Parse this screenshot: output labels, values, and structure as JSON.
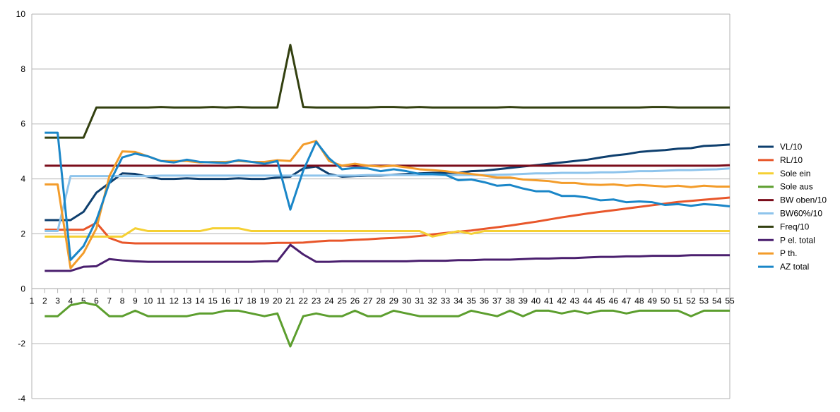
{
  "chart_data": {
    "type": "line",
    "title": "",
    "xlabel": "",
    "ylabel": "",
    "ylim": [
      -4,
      10
    ],
    "yticks": [
      -4,
      -2,
      0,
      2,
      4,
      6,
      8,
      10
    ],
    "categories": [
      1,
      2,
      3,
      4,
      5,
      6,
      7,
      8,
      9,
      10,
      11,
      12,
      13,
      14,
      15,
      16,
      17,
      18,
      19,
      20,
      21,
      22,
      23,
      24,
      25,
      26,
      27,
      28,
      29,
      30,
      31,
      32,
      33,
      34,
      35,
      36,
      37,
      38,
      39,
      40,
      41,
      42,
      43,
      44,
      45,
      46,
      47,
      48,
      49,
      50,
      51,
      52,
      53,
      54,
      55
    ],
    "grid": "horizontal",
    "legend": "right",
    "series": [
      {
        "name": "VL/10",
        "color": "#0e3f6e",
        "values": [
          null,
          2.5,
          2.5,
          2.5,
          2.8,
          3.5,
          3.85,
          4.2,
          4.18,
          4.08,
          4.0,
          4.0,
          4.02,
          4.0,
          4.0,
          4.0,
          4.02,
          4.0,
          4.0,
          4.05,
          4.08,
          4.38,
          4.45,
          4.18,
          4.08,
          4.1,
          4.12,
          4.12,
          4.15,
          4.18,
          4.2,
          4.22,
          4.22,
          4.22,
          4.28,
          4.3,
          4.35,
          4.4,
          4.45,
          4.5,
          4.55,
          4.6,
          4.65,
          4.7,
          4.78,
          4.85,
          4.9,
          4.98,
          5.02,
          5.05,
          5.1,
          5.12,
          5.2,
          5.22,
          5.25
        ]
      },
      {
        "name": "RL/10",
        "color": "#e8562a",
        "values": [
          null,
          2.15,
          2.15,
          2.15,
          2.15,
          2.4,
          1.85,
          1.68,
          1.65,
          1.65,
          1.65,
          1.65,
          1.65,
          1.65,
          1.65,
          1.65,
          1.65,
          1.65,
          1.65,
          1.67,
          1.67,
          1.68,
          1.72,
          1.75,
          1.75,
          1.78,
          1.8,
          1.83,
          1.85,
          1.88,
          1.92,
          1.98,
          2.03,
          2.08,
          2.12,
          2.18,
          2.24,
          2.3,
          2.37,
          2.44,
          2.52,
          2.6,
          2.67,
          2.74,
          2.8,
          2.86,
          2.92,
          2.98,
          3.04,
          3.1,
          3.16,
          3.2,
          3.24,
          3.28,
          3.32
        ]
      },
      {
        "name": "Sole ein",
        "color": "#f5d033",
        "values": [
          null,
          1.9,
          1.9,
          1.9,
          1.9,
          1.9,
          1.9,
          1.9,
          2.2,
          2.1,
          2.1,
          2.1,
          2.1,
          2.1,
          2.2,
          2.2,
          2.2,
          2.1,
          2.1,
          2.1,
          2.1,
          2.1,
          2.1,
          2.1,
          2.1,
          2.1,
          2.1,
          2.1,
          2.1,
          2.1,
          2.1,
          1.9,
          2.0,
          2.1,
          2.0,
          2.1,
          2.1,
          2.1,
          2.1,
          2.1,
          2.1,
          2.1,
          2.1,
          2.1,
          2.1,
          2.1,
          2.1,
          2.1,
          2.1,
          2.1,
          2.1,
          2.1,
          2.1,
          2.1,
          2.1
        ]
      },
      {
        "name": "Sole aus",
        "color": "#5c9e2e",
        "values": [
          null,
          -1.0,
          -1.0,
          -0.6,
          -0.5,
          -0.6,
          -1.0,
          -1.0,
          -0.8,
          -1.0,
          -1.0,
          -1.0,
          -1.0,
          -0.9,
          -0.9,
          -0.8,
          -0.8,
          -0.9,
          -1.0,
          -0.9,
          -2.1,
          -1.0,
          -0.9,
          -1.0,
          -1.0,
          -0.8,
          -1.0,
          -1.0,
          -0.8,
          -0.9,
          -1.0,
          -1.0,
          -1.0,
          -1.0,
          -0.8,
          -0.9,
          -1.0,
          -0.8,
          -1.0,
          -0.8,
          -0.8,
          -0.9,
          -0.8,
          -0.9,
          -0.8,
          -0.8,
          -0.9,
          -0.8,
          -0.8,
          -0.8,
          -0.8,
          -1.0,
          -0.8,
          -0.8,
          -0.8
        ]
      },
      {
        "name": "BW oben/10",
        "color": "#7a0c1a",
        "values": [
          null,
          4.48,
          4.48,
          4.48,
          4.48,
          4.48,
          4.48,
          4.48,
          4.48,
          4.48,
          4.48,
          4.48,
          4.48,
          4.48,
          4.48,
          4.48,
          4.48,
          4.48,
          4.48,
          4.48,
          4.48,
          4.48,
          4.48,
          4.48,
          4.48,
          4.48,
          4.48,
          4.48,
          4.48,
          4.48,
          4.48,
          4.48,
          4.48,
          4.48,
          4.48,
          4.48,
          4.48,
          4.48,
          4.48,
          4.48,
          4.48,
          4.48,
          4.48,
          4.48,
          4.48,
          4.48,
          4.48,
          4.48,
          4.48,
          4.48,
          4.48,
          4.48,
          4.48,
          4.48,
          4.5
        ]
      },
      {
        "name": "BW60%/10",
        "color": "#8ec4ec",
        "values": [
          null,
          2.1,
          2.1,
          4.1,
          4.1,
          4.1,
          4.1,
          4.1,
          4.1,
          4.1,
          4.12,
          4.12,
          4.12,
          4.12,
          4.12,
          4.12,
          4.12,
          4.12,
          4.12,
          4.12,
          4.12,
          4.12,
          4.12,
          4.12,
          4.12,
          4.12,
          4.14,
          4.14,
          4.14,
          4.14,
          4.14,
          4.14,
          4.14,
          4.14,
          4.14,
          4.14,
          4.15,
          4.16,
          4.18,
          4.2,
          4.2,
          4.22,
          4.22,
          4.22,
          4.24,
          4.24,
          4.26,
          4.28,
          4.28,
          4.3,
          4.32,
          4.32,
          4.34,
          4.35,
          4.38
        ]
      },
      {
        "name": "Freq/10",
        "color": "#334010",
        "values": [
          null,
          5.5,
          5.5,
          5.5,
          5.5,
          6.6,
          6.6,
          6.6,
          6.6,
          6.6,
          6.62,
          6.6,
          6.6,
          6.6,
          6.62,
          6.6,
          6.62,
          6.6,
          6.6,
          6.6,
          8.88,
          6.62,
          6.6,
          6.6,
          6.6,
          6.6,
          6.6,
          6.62,
          6.62,
          6.6,
          6.62,
          6.6,
          6.6,
          6.6,
          6.6,
          6.6,
          6.6,
          6.62,
          6.6,
          6.6,
          6.6,
          6.6,
          6.6,
          6.6,
          6.6,
          6.6,
          6.6,
          6.6,
          6.62,
          6.62,
          6.6,
          6.6,
          6.6,
          6.6,
          6.6
        ]
      },
      {
        "name": "P el. total",
        "color": "#4a1f6e",
        "values": [
          null,
          0.65,
          0.65,
          0.65,
          0.8,
          0.82,
          1.08,
          1.03,
          1.0,
          0.98,
          0.98,
          0.98,
          0.98,
          0.98,
          0.98,
          0.98,
          0.98,
          0.98,
          1.0,
          1.0,
          1.6,
          1.25,
          0.98,
          0.98,
          1.0,
          1.0,
          1.0,
          1.0,
          1.0,
          1.0,
          1.02,
          1.02,
          1.02,
          1.04,
          1.04,
          1.06,
          1.06,
          1.06,
          1.08,
          1.1,
          1.1,
          1.12,
          1.12,
          1.14,
          1.16,
          1.16,
          1.18,
          1.18,
          1.2,
          1.2,
          1.2,
          1.22,
          1.22,
          1.22,
          1.22
        ]
      },
      {
        "name": "P th.",
        "color": "#f39c2a",
        "values": [
          null,
          3.8,
          3.8,
          0.75,
          1.3,
          2.2,
          4.1,
          5.0,
          4.98,
          4.82,
          4.65,
          4.65,
          4.65,
          4.6,
          4.62,
          4.62,
          4.65,
          4.62,
          4.62,
          4.68,
          4.65,
          5.25,
          5.38,
          4.65,
          4.48,
          4.55,
          4.48,
          4.45,
          4.48,
          4.42,
          4.35,
          4.32,
          4.28,
          4.22,
          4.18,
          4.12,
          4.05,
          4.05,
          3.98,
          3.95,
          3.92,
          3.85,
          3.85,
          3.8,
          3.78,
          3.8,
          3.75,
          3.78,
          3.75,
          3.72,
          3.75,
          3.7,
          3.75,
          3.72,
          3.72
        ]
      },
      {
        "name": "AZ total",
        "color": "#1a86c8",
        "values": [
          null,
          5.68,
          5.68,
          1.05,
          1.55,
          2.5,
          3.85,
          4.78,
          4.92,
          4.82,
          4.65,
          4.6,
          4.7,
          4.62,
          4.6,
          4.58,
          4.68,
          4.62,
          4.55,
          4.65,
          2.88,
          4.3,
          5.35,
          4.75,
          4.35,
          4.4,
          4.38,
          4.28,
          4.35,
          4.28,
          4.18,
          4.18,
          4.15,
          3.95,
          3.98,
          3.88,
          3.75,
          3.78,
          3.65,
          3.55,
          3.55,
          3.38,
          3.38,
          3.32,
          3.22,
          3.25,
          3.15,
          3.18,
          3.15,
          3.05,
          3.08,
          3.02,
          3.08,
          3.05,
          3.0
        ]
      }
    ]
  }
}
